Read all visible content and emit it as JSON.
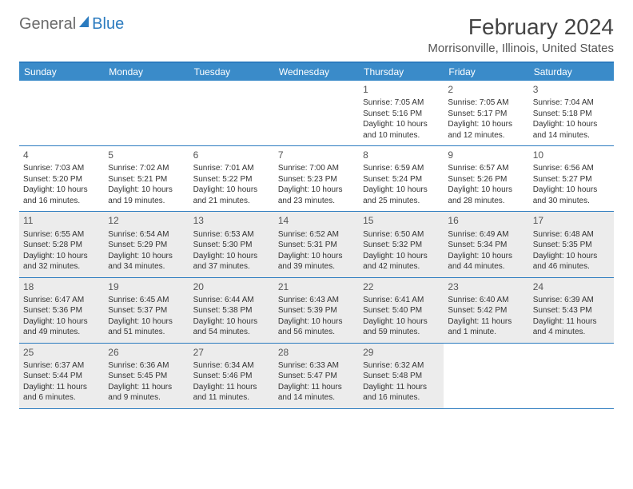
{
  "logo": {
    "general": "General",
    "blue": "Blue"
  },
  "title": "February 2024",
  "location": "Morrisonville, Illinois, United States",
  "colors": {
    "header_bg": "#3a8bc9",
    "border": "#2b7bbf",
    "shaded_bg": "#ececec",
    "text": "#333333",
    "logo_general": "#6b6b6b",
    "logo_blue": "#2b7bbf"
  },
  "weekdays": [
    "Sunday",
    "Monday",
    "Tuesday",
    "Wednesday",
    "Thursday",
    "Friday",
    "Saturday"
  ],
  "weeks": [
    [
      {
        "empty": true
      },
      {
        "empty": true
      },
      {
        "empty": true
      },
      {
        "empty": true
      },
      {
        "num": "1",
        "sunrise": "7:05 AM",
        "sunset": "5:16 PM",
        "daylight": "10 hours and 10 minutes."
      },
      {
        "num": "2",
        "sunrise": "7:05 AM",
        "sunset": "5:17 PM",
        "daylight": "10 hours and 12 minutes."
      },
      {
        "num": "3",
        "sunrise": "7:04 AM",
        "sunset": "5:18 PM",
        "daylight": "10 hours and 14 minutes."
      }
    ],
    [
      {
        "num": "4",
        "sunrise": "7:03 AM",
        "sunset": "5:20 PM",
        "daylight": "10 hours and 16 minutes."
      },
      {
        "num": "5",
        "sunrise": "7:02 AM",
        "sunset": "5:21 PM",
        "daylight": "10 hours and 19 minutes."
      },
      {
        "num": "6",
        "sunrise": "7:01 AM",
        "sunset": "5:22 PM",
        "daylight": "10 hours and 21 minutes."
      },
      {
        "num": "7",
        "sunrise": "7:00 AM",
        "sunset": "5:23 PM",
        "daylight": "10 hours and 23 minutes."
      },
      {
        "num": "8",
        "sunrise": "6:59 AM",
        "sunset": "5:24 PM",
        "daylight": "10 hours and 25 minutes."
      },
      {
        "num": "9",
        "sunrise": "6:57 AM",
        "sunset": "5:26 PM",
        "daylight": "10 hours and 28 minutes."
      },
      {
        "num": "10",
        "sunrise": "6:56 AM",
        "sunset": "5:27 PM",
        "daylight": "10 hours and 30 minutes."
      }
    ],
    [
      {
        "num": "11",
        "shaded": true,
        "sunrise": "6:55 AM",
        "sunset": "5:28 PM",
        "daylight": "10 hours and 32 minutes."
      },
      {
        "num": "12",
        "shaded": true,
        "sunrise": "6:54 AM",
        "sunset": "5:29 PM",
        "daylight": "10 hours and 34 minutes."
      },
      {
        "num": "13",
        "shaded": true,
        "sunrise": "6:53 AM",
        "sunset": "5:30 PM",
        "daylight": "10 hours and 37 minutes."
      },
      {
        "num": "14",
        "shaded": true,
        "sunrise": "6:52 AM",
        "sunset": "5:31 PM",
        "daylight": "10 hours and 39 minutes."
      },
      {
        "num": "15",
        "shaded": true,
        "sunrise": "6:50 AM",
        "sunset": "5:32 PM",
        "daylight": "10 hours and 42 minutes."
      },
      {
        "num": "16",
        "shaded": true,
        "sunrise": "6:49 AM",
        "sunset": "5:34 PM",
        "daylight": "10 hours and 44 minutes."
      },
      {
        "num": "17",
        "shaded": true,
        "sunrise": "6:48 AM",
        "sunset": "5:35 PM",
        "daylight": "10 hours and 46 minutes."
      }
    ],
    [
      {
        "num": "18",
        "shaded": true,
        "sunrise": "6:47 AM",
        "sunset": "5:36 PM",
        "daylight": "10 hours and 49 minutes."
      },
      {
        "num": "19",
        "shaded": true,
        "sunrise": "6:45 AM",
        "sunset": "5:37 PM",
        "daylight": "10 hours and 51 minutes."
      },
      {
        "num": "20",
        "shaded": true,
        "sunrise": "6:44 AM",
        "sunset": "5:38 PM",
        "daylight": "10 hours and 54 minutes."
      },
      {
        "num": "21",
        "shaded": true,
        "sunrise": "6:43 AM",
        "sunset": "5:39 PM",
        "daylight": "10 hours and 56 minutes."
      },
      {
        "num": "22",
        "shaded": true,
        "sunrise": "6:41 AM",
        "sunset": "5:40 PM",
        "daylight": "10 hours and 59 minutes."
      },
      {
        "num": "23",
        "shaded": true,
        "sunrise": "6:40 AM",
        "sunset": "5:42 PM",
        "daylight": "11 hours and 1 minute."
      },
      {
        "num": "24",
        "shaded": true,
        "sunrise": "6:39 AM",
        "sunset": "5:43 PM",
        "daylight": "11 hours and 4 minutes."
      }
    ],
    [
      {
        "num": "25",
        "shaded": true,
        "sunrise": "6:37 AM",
        "sunset": "5:44 PM",
        "daylight": "11 hours and 6 minutes."
      },
      {
        "num": "26",
        "shaded": true,
        "sunrise": "6:36 AM",
        "sunset": "5:45 PM",
        "daylight": "11 hours and 9 minutes."
      },
      {
        "num": "27",
        "shaded": true,
        "sunrise": "6:34 AM",
        "sunset": "5:46 PM",
        "daylight": "11 hours and 11 minutes."
      },
      {
        "num": "28",
        "shaded": true,
        "sunrise": "6:33 AM",
        "sunset": "5:47 PM",
        "daylight": "11 hours and 14 minutes."
      },
      {
        "num": "29",
        "shaded": true,
        "sunrise": "6:32 AM",
        "sunset": "5:48 PM",
        "daylight": "11 hours and 16 minutes."
      },
      {
        "empty": true
      },
      {
        "empty": true
      }
    ]
  ],
  "labels": {
    "sunrise": "Sunrise:",
    "sunset": "Sunset:",
    "daylight": "Daylight:"
  }
}
